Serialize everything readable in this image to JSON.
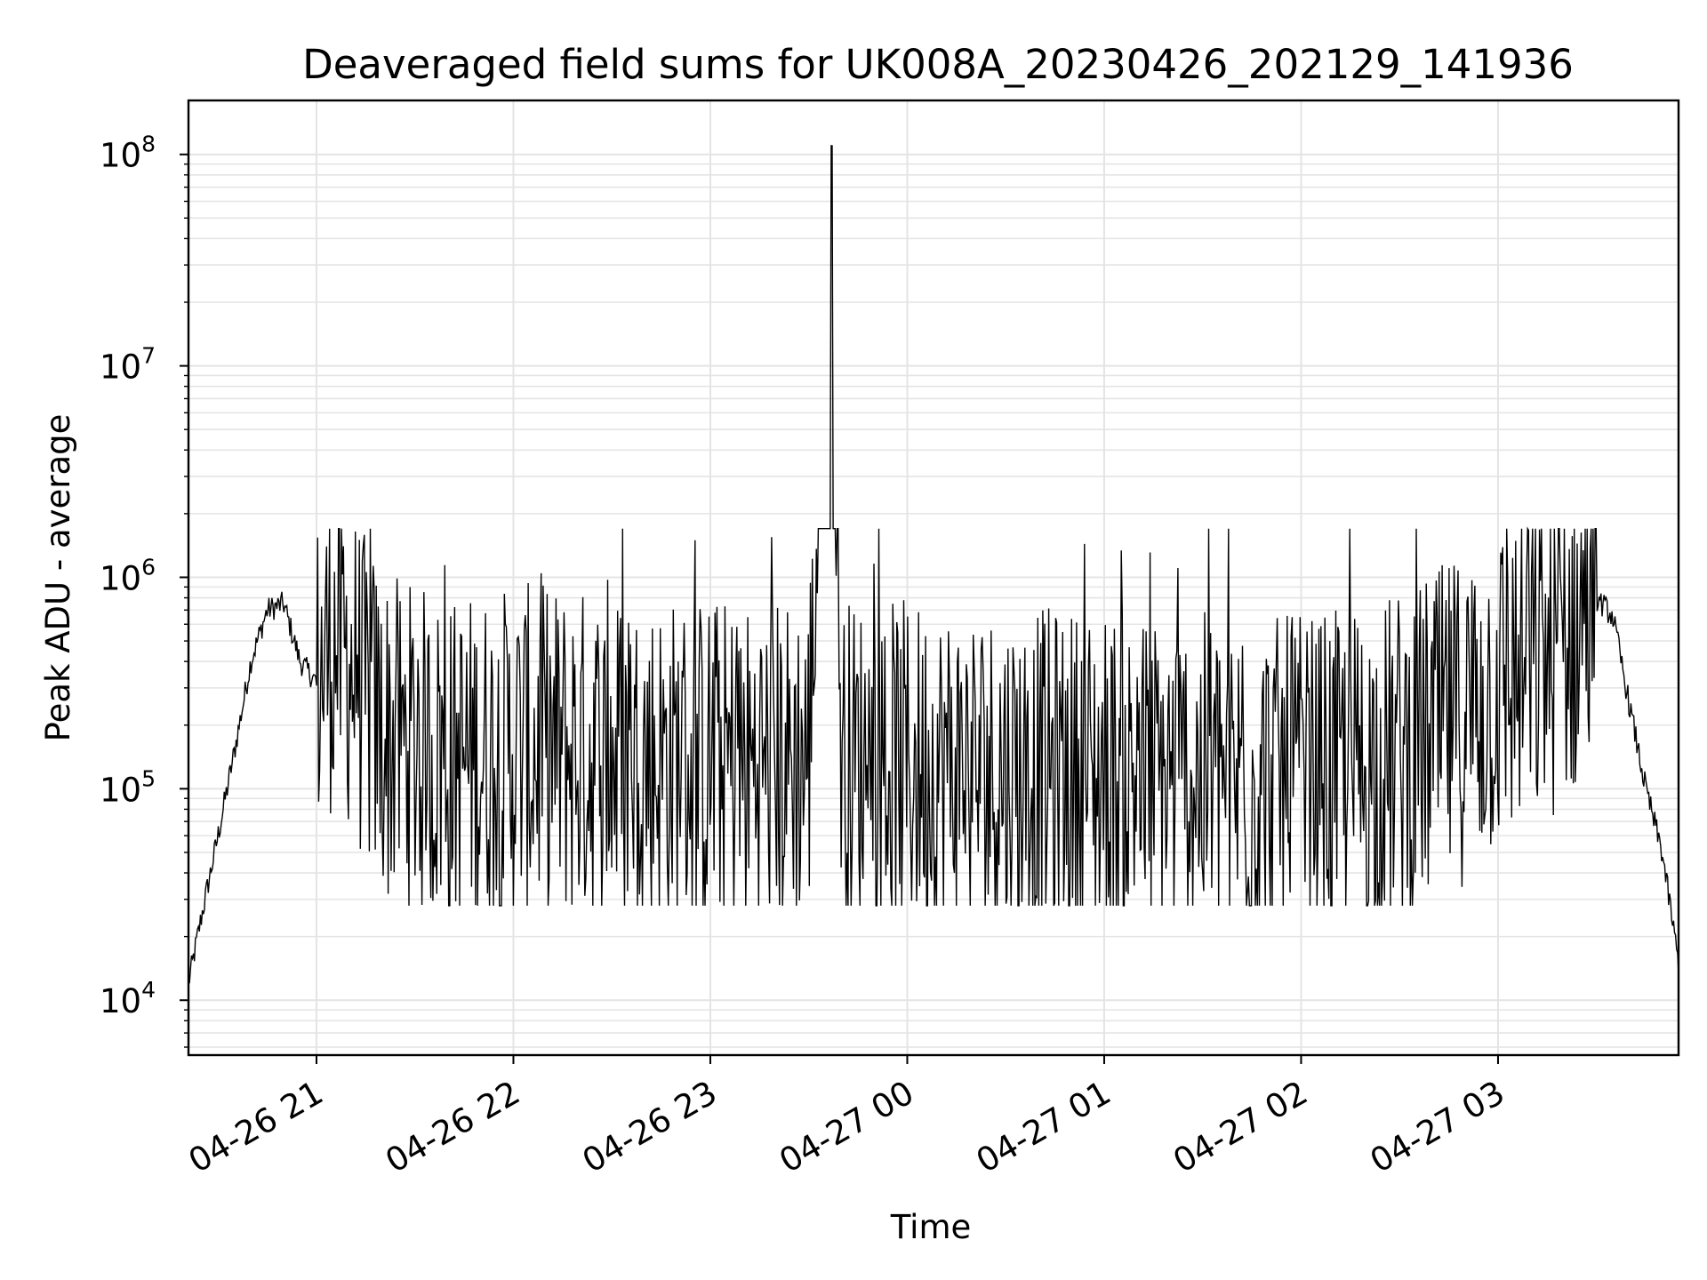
{
  "chart_data": {
    "type": "line",
    "title": "Deaveraged field sums for UK008A_20230426_202129_141936",
    "xlabel": "Time",
    "ylabel": "Peak ADU - average",
    "yscale": "log",
    "ylim": [
      5500,
      180000000
    ],
    "xlim": [
      "2023-04-26 20:21",
      "2023-04-27 03:55"
    ],
    "x_ticks": [
      "04-26 21",
      "04-26 22",
      "04-26 23",
      "04-27 00",
      "04-27 01",
      "04-27 02",
      "04-27 03"
    ],
    "y_ticks": [
      {
        "base": "10",
        "exp": "4",
        "value": 10000
      },
      {
        "base": "10",
        "exp": "5",
        "value": 100000
      },
      {
        "base": "10",
        "exp": "6",
        "value": 1000000
      },
      {
        "base": "10",
        "exp": "7",
        "value": 10000000
      },
      {
        "base": "10",
        "exp": "8",
        "value": 100000000
      }
    ],
    "grid": true,
    "line_color": "#000000",
    "series": [
      {
        "x": [
          "2023-04-26 20:21",
          "2023-04-26 20:25",
          "2023-04-26 20:30",
          "2023-04-26 20:35",
          "2023-04-26 20:40",
          "2023-04-26 20:45",
          "2023-04-26 20:50",
          "2023-04-26 20:55",
          "2023-04-26 21:00",
          "2023-04-26 21:05",
          "2023-04-26 21:10",
          "2023-04-26 21:15",
          "2023-04-26 21:20",
          "2023-04-26 21:25",
          "2023-04-26 21:30",
          "2023-04-26 21:35",
          "2023-04-26 21:40",
          "2023-04-26 21:45",
          "2023-04-26 21:50",
          "2023-04-26 21:55",
          "2023-04-26 22:00",
          "2023-04-26 22:10",
          "2023-04-26 22:20",
          "2023-04-26 22:30",
          "2023-04-26 22:40",
          "2023-04-26 22:50",
          "2023-04-26 23:00",
          "2023-04-26 23:10",
          "2023-04-26 23:20",
          "2023-04-26 23:30",
          "2023-04-26 23:37",
          "2023-04-26 23:40",
          "2023-04-26 23:50",
          "2023-04-27 00:00",
          "2023-04-27 00:10",
          "2023-04-27 00:20",
          "2023-04-27 00:30",
          "2023-04-27 00:40",
          "2023-04-27 00:50",
          "2023-04-27 01:00",
          "2023-04-27 01:10",
          "2023-04-27 01:20",
          "2023-04-27 01:30",
          "2023-04-27 01:40",
          "2023-04-27 01:50",
          "2023-04-27 02:00",
          "2023-04-27 02:10",
          "2023-04-27 02:20",
          "2023-04-27 02:30",
          "2023-04-27 02:40",
          "2023-04-27 02:50",
          "2023-04-27 03:00",
          "2023-04-27 03:10",
          "2023-04-27 03:20",
          "2023-04-27 03:25",
          "2023-04-27 03:30",
          "2023-04-27 03:35",
          "2023-04-27 03:40",
          "2023-04-27 03:45",
          "2023-04-27 03:50",
          "2023-04-27 03:55"
        ],
        "y": [
          12000,
          25000,
          60000,
          150000,
          400000,
          700000,
          750000,
          400000,
          320000,
          500000,
          400000,
          250000,
          180000,
          160000,
          150000,
          140000,
          130000,
          135000,
          140000,
          140000,
          150000,
          150000,
          145000,
          140000,
          135000,
          130000,
          130000,
          125000,
          130000,
          140000,
          110000000,
          130000,
          130000,
          125000,
          125000,
          120000,
          120000,
          115000,
          115000,
          115000,
          110000,
          110000,
          110000,
          105000,
          105000,
          105000,
          110000,
          120000,
          140000,
          170000,
          220000,
          300000,
          380000,
          480000,
          600000,
          800000,
          650000,
          250000,
          100000,
          50000,
          15000
        ],
        "noise": {
          "min_x": "2023-04-26 21:00",
          "max_x": "2023-04-27 03:30",
          "low": 28000,
          "high": 1700000
        }
      }
    ]
  }
}
